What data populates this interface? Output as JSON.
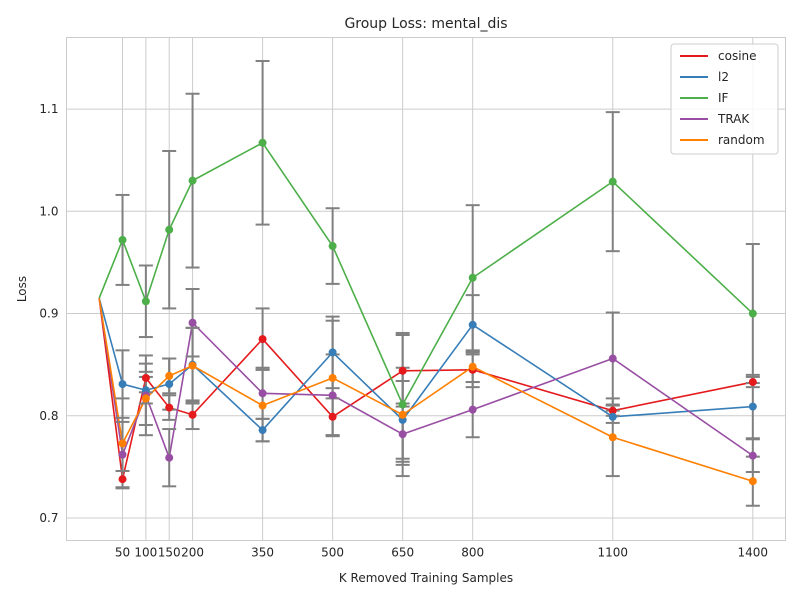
{
  "chart_data": {
    "type": "line",
    "title": "Group Loss: mental_dis",
    "xlabel": "K Removed Training Samples",
    "ylabel": "Loss",
    "x_ticks": [
      50,
      100,
      150,
      200,
      350,
      500,
      650,
      800,
      1100,
      1400
    ],
    "x_tick_labels": [
      "50",
      "100",
      "150",
      "200",
      "350",
      "500",
      "650",
      "800",
      "1100",
      "1400"
    ],
    "y_ticks": [
      0.7,
      0.8,
      0.9,
      1.0,
      1.1
    ],
    "y_tick_labels": [
      "0.7",
      "0.8",
      "0.9",
      "1.0",
      "1.1"
    ],
    "xlim": [
      -70,
      1470
    ],
    "ylim": [
      0.678,
      1.17
    ],
    "grid": true,
    "legend_position": "top-right",
    "origin_point": {
      "x": 0,
      "y": 0.915
    },
    "x": [
      50,
      100,
      150,
      200,
      350,
      500,
      650,
      800,
      1100,
      1400
    ],
    "series": [
      {
        "name": "cosine",
        "color": "#e41a1c",
        "values": [
          0.738,
          0.837,
          0.808,
          0.801,
          0.875,
          0.799,
          0.844,
          0.845,
          0.805,
          0.833
        ],
        "err": [
          0.008,
          0.014,
          0.012,
          0.014,
          0.03,
          0.018,
          0.035,
          0.017,
          0.005,
          0.005
        ]
      },
      {
        "name": "l2",
        "color": "#377eb8",
        "values": [
          0.831,
          0.825,
          0.831,
          0.85,
          0.786,
          0.862,
          0.796,
          0.889,
          0.799,
          0.809
        ],
        "err": [
          0.033,
          0.013,
          0.025,
          0.036,
          0.011,
          0.035,
          0.038,
          0.029,
          0.006,
          0.031
        ]
      },
      {
        "name": "IF",
        "color": "#4daf4a",
        "values": [
          0.972,
          0.912,
          0.982,
          1.03,
          1.067,
          0.966,
          0.811,
          0.935,
          1.029,
          0.9
        ],
        "err": [
          0.044,
          0.035,
          0.077,
          0.085,
          0.08,
          0.037,
          0.07,
          0.071,
          0.068,
          0.068
        ]
      },
      {
        "name": "TRAK",
        "color": "#984ea3",
        "values": [
          0.762,
          0.82,
          0.759,
          0.891,
          0.822,
          0.82,
          0.782,
          0.806,
          0.856,
          0.761
        ],
        "err": [
          0.032,
          0.039,
          0.028,
          0.033,
          0.025,
          0.04,
          0.03,
          0.027,
          0.045,
          0.016
        ]
      },
      {
        "name": "random",
        "color": "#ff7f00",
        "values": [
          0.773,
          0.817,
          0.839,
          0.849,
          0.81,
          0.837,
          0.801,
          0.848,
          0.779,
          0.736
        ],
        "err": [
          0.044,
          0.026,
          0.017,
          0.037,
          0.035,
          0.056,
          0.046,
          0.015,
          0.038,
          0.024
        ]
      }
    ]
  }
}
